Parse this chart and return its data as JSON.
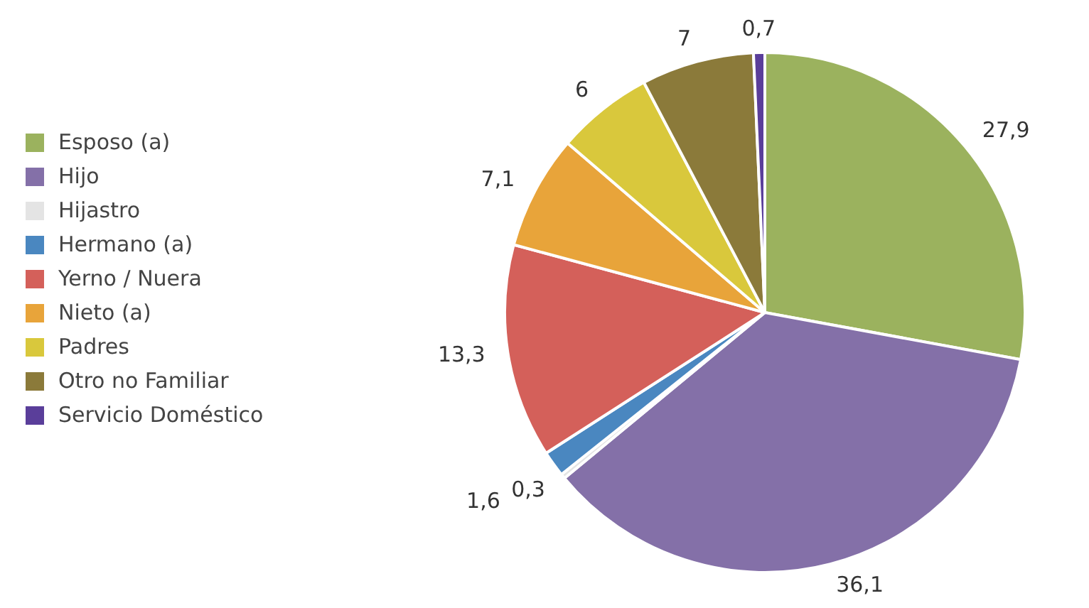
{
  "chart_data": {
    "type": "pie",
    "categories": [
      "Esposo (a)",
      "Hijo",
      "Hijastro",
      "Hermano (a)",
      "Yerno / Nuera",
      "Nieto (a)",
      "Padres",
      "Otro no Familiar",
      "Servicio Doméstico"
    ],
    "values": [
      27.9,
      36.1,
      0.3,
      1.6,
      13.3,
      7.1,
      6,
      7,
      0.7
    ],
    "colors": [
      "#9bb25e",
      "#8470a8",
      "#e4e4e4",
      "#4a87c0",
      "#d4605a",
      "#e8a43a",
      "#d9c83c",
      "#8b7a3a",
      "#5a3e9a"
    ],
    "value_labels": [
      "27,9",
      "36,1",
      "0,3",
      "1,6",
      "13,3",
      "7,1",
      "6",
      "7",
      "0,7"
    ],
    "legend": "left"
  }
}
